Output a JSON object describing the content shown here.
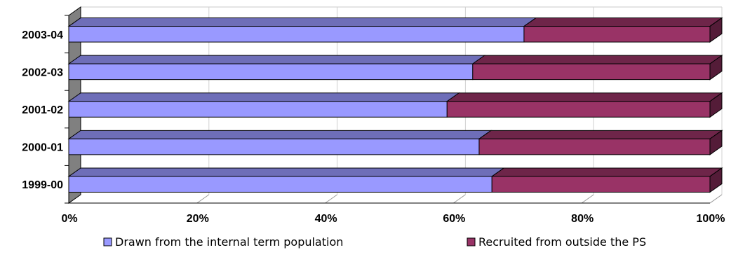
{
  "chart_data": {
    "type": "bar",
    "orientation": "horizontal",
    "stacked": "percent",
    "three_d": true,
    "categories": [
      "1999-00",
      "2000-01",
      "2001-02",
      "2002-03",
      "2003-04"
    ],
    "series": [
      {
        "name": "Drawn from the internal term population",
        "values": [
          66,
          64,
          59,
          63,
          71
        ],
        "color": "#9999ff"
      },
      {
        "name": "Recruited from outside the PS",
        "values": [
          34,
          36,
          41,
          37,
          29
        ],
        "color": "#993366"
      }
    ],
    "x_ticks": [
      "0%",
      "20%",
      "40%",
      "60%",
      "80%",
      "100%"
    ],
    "xlim": [
      0,
      100
    ],
    "grid": "vertical",
    "legend_position": "bottom"
  }
}
